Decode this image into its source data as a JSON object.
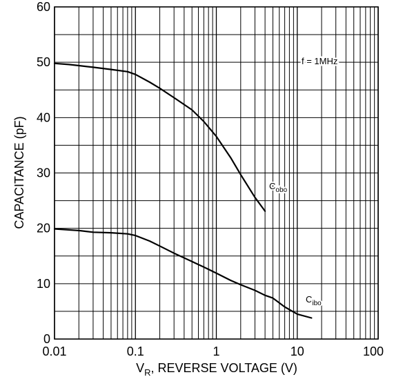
{
  "chart_data": {
    "type": "line",
    "title": "",
    "x_axis": {
      "label_main": "V",
      "label_sub": "R",
      "label_rest": ", REVERSE VOLTAGE (V)",
      "scale": "log",
      "range": [
        0.01,
        100
      ],
      "ticks": [
        0.01,
        0.1,
        1,
        10,
        100
      ],
      "tick_labels": [
        "0.01",
        "0.1",
        "1",
        "10",
        "100"
      ]
    },
    "y_axis": {
      "label": "CAPACITANCE (pF)",
      "scale": "linear",
      "range": [
        0,
        60
      ],
      "ticks": [
        0,
        10,
        20,
        30,
        40,
        50,
        60
      ],
      "tick_labels": [
        "0",
        "10",
        "20",
        "30",
        "40",
        "50",
        "60"
      ],
      "minor_step": 5
    },
    "grid": true,
    "annotation": "f = 1MHz",
    "series": [
      {
        "name_main": "C",
        "name_sub": "obo",
        "points": [
          [
            0.01,
            49.8
          ],
          [
            0.015,
            49.6
          ],
          [
            0.02,
            49.4
          ],
          [
            0.03,
            49.1
          ],
          [
            0.05,
            48.7
          ],
          [
            0.08,
            48.3
          ],
          [
            0.1,
            47.8
          ],
          [
            0.15,
            46.4
          ],
          [
            0.2,
            45.3
          ],
          [
            0.3,
            43.6
          ],
          [
            0.5,
            41.4
          ],
          [
            0.7,
            39.3
          ],
          [
            1,
            36.6
          ],
          [
            1.5,
            32.8
          ],
          [
            2,
            29.7
          ],
          [
            3,
            25.6
          ],
          [
            4,
            23.1
          ]
        ]
      },
      {
        "name_main": "C",
        "name_sub": "ibo",
        "points": [
          [
            0.01,
            19.9
          ],
          [
            0.02,
            19.6
          ],
          [
            0.03,
            19.3
          ],
          [
            0.05,
            19.2
          ],
          [
            0.08,
            19.0
          ],
          [
            0.1,
            18.7
          ],
          [
            0.15,
            17.7
          ],
          [
            0.2,
            16.8
          ],
          [
            0.3,
            15.5
          ],
          [
            0.5,
            14.0
          ],
          [
            0.7,
            13.0
          ],
          [
            1,
            11.9
          ],
          [
            1.5,
            10.6
          ],
          [
            2,
            9.8
          ],
          [
            3,
            8.8
          ],
          [
            4,
            7.9
          ],
          [
            5,
            7.4
          ],
          [
            7,
            5.8
          ],
          [
            10,
            4.5
          ],
          [
            15,
            3.8
          ]
        ]
      }
    ]
  }
}
